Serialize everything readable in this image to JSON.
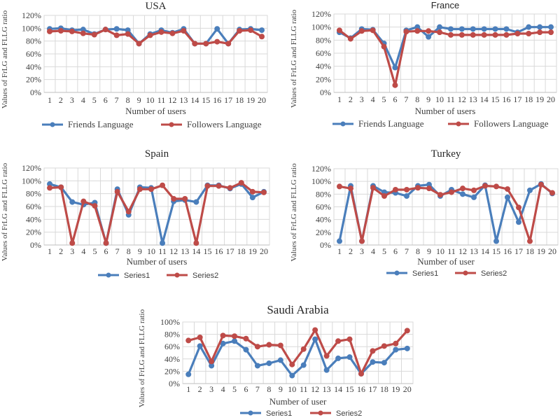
{
  "colors": {
    "series_blue": "#4a7ebb",
    "series_red": "#be4b48"
  },
  "chart_data": [
    {
      "id": "usa",
      "type": "line",
      "title": "USA",
      "xlabel": "Number of users",
      "ylabel": "Values of FrLG and FLLG ratio",
      "categories": [
        "1",
        "2",
        "3",
        "4",
        "5",
        "6",
        "7",
        "8",
        "9",
        "10",
        "11",
        "12",
        "13",
        "14",
        "15",
        "16",
        "17",
        "18",
        "19",
        "20"
      ],
      "yticks": [
        "0%",
        "20%",
        "40%",
        "60%",
        "80%",
        "100%",
        "120%"
      ],
      "ylim": [
        0,
        120
      ],
      "grid": true,
      "legend_position": "bottom",
      "series": [
        {
          "name": "Friends Language",
          "color": "#4a7ebb",
          "values": [
            99,
            100,
            97,
            98,
            91,
            98,
            99,
            97,
            76,
            91,
            97,
            93,
            99,
            76,
            76,
            99,
            76,
            98,
            99,
            97
          ]
        },
        {
          "name": "Followers Language",
          "color": "#be4b48",
          "values": [
            95,
            96,
            95,
            92,
            90,
            98,
            89,
            91,
            76,
            89,
            94,
            92,
            96,
            76,
            76,
            79,
            76,
            96,
            97,
            87
          ]
        }
      ]
    },
    {
      "id": "france",
      "type": "line",
      "title": "France",
      "xlabel": "Number of users",
      "ylabel": "Values of FrLG and FLLG ratio",
      "categories": [
        "1",
        "2",
        "3",
        "4",
        "5",
        "6",
        "7",
        "8",
        "9",
        "10",
        "11",
        "12",
        "13",
        "14",
        "15",
        "16",
        "17",
        "18",
        "19",
        "20"
      ],
      "yticks": [
        "0%",
        "20%",
        "40%",
        "60%",
        "80%",
        "100%",
        "120%"
      ],
      "ylim": [
        0,
        120
      ],
      "grid": true,
      "legend_position": "bottom",
      "series": [
        {
          "name": "Friends Language",
          "color": "#4a7ebb",
          "values": [
            92,
            83,
            97,
            96,
            75,
            38,
            95,
            100,
            85,
            100,
            97,
            97,
            97,
            97,
            97,
            97,
            92,
            100,
            100,
            100
          ]
        },
        {
          "name": "Followers Language",
          "color": "#be4b48",
          "values": [
            95,
            82,
            94,
            95,
            70,
            11,
            93,
            94,
            94,
            92,
            88,
            88,
            88,
            88,
            88,
            88,
            90,
            90,
            92,
            92
          ]
        }
      ]
    },
    {
      "id": "spain",
      "type": "line",
      "title": "Spain",
      "xlabel": "Number of users",
      "ylabel": "Values of FrLG and FLLG ratio",
      "categories": [
        "1",
        "2",
        "3",
        "4",
        "5",
        "6",
        "7",
        "8",
        "9",
        "10",
        "11",
        "12",
        "13",
        "14",
        "15",
        "16",
        "17",
        "18",
        "19",
        "20"
      ],
      "yticks": [
        "0%",
        "20%",
        "40%",
        "60%",
        "80%",
        "100%",
        "120%"
      ],
      "ylim": [
        0,
        120
      ],
      "grid": true,
      "legend_position": "bottom",
      "series": [
        {
          "name": "Series1",
          "color": "#4a7ebb",
          "values": [
            95,
            90,
            67,
            63,
            66,
            3,
            87,
            47,
            90,
            89,
            3,
            68,
            70,
            67,
            93,
            93,
            88,
            95,
            74,
            83
          ]
        },
        {
          "name": "Series2",
          "color": "#be4b48",
          "values": [
            89,
            90,
            3,
            68,
            61,
            3,
            83,
            52,
            87,
            87,
            93,
            72,
            72,
            3,
            92,
            92,
            89,
            97,
            83,
            82
          ]
        }
      ]
    },
    {
      "id": "turkey",
      "type": "line",
      "title": "Turkey",
      "xlabel": "Number of user",
      "ylabel": "Values of FrLG and FLLG ratio",
      "categories": [
        "1",
        "2",
        "3",
        "4",
        "5",
        "6",
        "7",
        "8",
        "9",
        "10",
        "11",
        "12",
        "13",
        "14",
        "15",
        "16",
        "17",
        "18",
        "19",
        "20"
      ],
      "yticks": [
        "0%",
        "20%",
        "40%",
        "60%",
        "80%",
        "100%",
        "120%"
      ],
      "ylim": [
        0,
        120
      ],
      "grid": true,
      "legend_position": "bottom",
      "series": [
        {
          "name": "Series1",
          "color": "#4a7ebb",
          "values": [
            6,
            93,
            6,
            93,
            83,
            82,
            77,
            93,
            95,
            77,
            87,
            80,
            75,
            94,
            6,
            75,
            36,
            86,
            96,
            81
          ]
        },
        {
          "name": "Series2",
          "color": "#be4b48",
          "values": [
            92,
            89,
            6,
            90,
            77,
            87,
            87,
            90,
            89,
            79,
            83,
            89,
            86,
            93,
            92,
            88,
            59,
            6,
            95,
            82
          ]
        }
      ]
    },
    {
      "id": "saudi",
      "type": "line",
      "title": "Saudi Arabia",
      "xlabel": "Number of user",
      "ylabel": "Values of FrLG and FLLG ratio",
      "categories": [
        "1",
        "2",
        "3",
        "4",
        "5",
        "6",
        "7",
        "8",
        "9",
        "10",
        "11",
        "12",
        "13",
        "14",
        "15",
        "16",
        "17",
        "18",
        "19",
        "20"
      ],
      "yticks": [
        "0%",
        "20%",
        "40%",
        "60%",
        "80%",
        "100%"
      ],
      "ylim": [
        0,
        100
      ],
      "grid": true,
      "legend_position": "bottom",
      "series": [
        {
          "name": "Series1",
          "color": "#4a7ebb",
          "values": [
            15,
            61,
            29,
            65,
            69,
            55,
            29,
            33,
            38,
            13,
            30,
            72,
            22,
            41,
            43,
            16,
            35,
            34,
            55,
            57
          ]
        },
        {
          "name": "Series2",
          "color": "#be4b48",
          "values": [
            70,
            75,
            36,
            78,
            77,
            73,
            60,
            63,
            62,
            31,
            56,
            87,
            45,
            69,
            72,
            16,
            53,
            61,
            65,
            86
          ]
        }
      ]
    }
  ]
}
